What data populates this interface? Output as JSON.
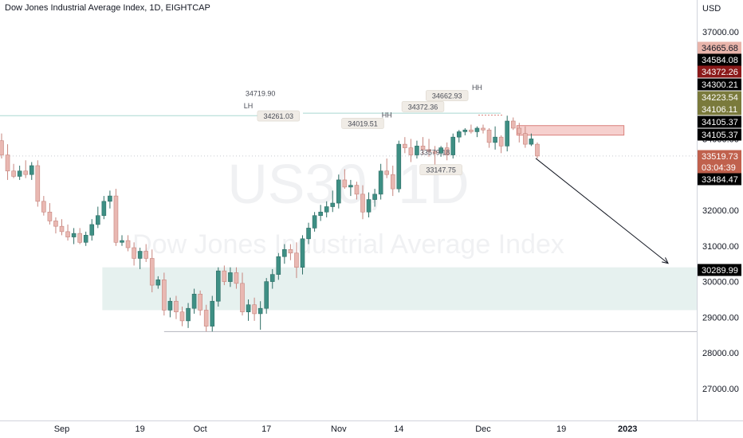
{
  "header": {
    "title": "Dow Jones Industrial Average Index, 1D, EIGHTCAP",
    "currency": "USD"
  },
  "watermark": {
    "symbol": "US30, 1D",
    "name": "Dow Jones Industrial Average Index"
  },
  "colors": {
    "up": "#26a69a",
    "up_body": "#3e8f84",
    "down": "#e4a9a4",
    "down_body": "#e9b8b2",
    "text": "#131722",
    "axis_text": "#787b86",
    "label_bg": "#000000"
  },
  "chart_data": {
    "type": "candlestick",
    "title": "Dow Jones Industrial Average Index, 1D, EIGHTCAP",
    "ylabel": "USD",
    "ylim": [
      26100,
      37900
    ],
    "y_ticks": [
      27000,
      28000,
      29000,
      30000,
      31000,
      32000,
      33000,
      34000,
      35000,
      36000,
      37000
    ],
    "y_tick_labels": [
      "27000.00",
      "28000.00",
      "29000.00",
      "30000.00",
      "31000.00",
      "32000.00",
      "33000.00",
      "34000.00",
      "35000.00",
      "36000.00",
      "37000.00"
    ],
    "x_ticks": [
      {
        "label": "Sep",
        "index": 10
      },
      {
        "label": "19",
        "index": 23
      },
      {
        "label": "Oct",
        "index": 33
      },
      {
        "label": "17",
        "index": 44
      },
      {
        "label": "Nov",
        "index": 56
      },
      {
        "label": "14",
        "index": 66
      },
      {
        "label": "Dec",
        "index": 80
      },
      {
        "label": "19",
        "index": 93
      },
      {
        "label": "2023",
        "index": 104
      }
    ],
    "candles": [
      {
        "o": 33950,
        "h": 34150,
        "l": 33450,
        "c": 33550
      },
      {
        "o": 33550,
        "h": 33850,
        "l": 32850,
        "c": 33100
      },
      {
        "o": 33100,
        "h": 33300,
        "l": 32900,
        "c": 32950
      },
      {
        "o": 32950,
        "h": 33250,
        "l": 32850,
        "c": 33100
      },
      {
        "o": 33100,
        "h": 33400,
        "l": 32900,
        "c": 33000
      },
      {
        "o": 33000,
        "h": 33350,
        "l": 32850,
        "c": 33250
      },
      {
        "o": 33250,
        "h": 33400,
        "l": 32100,
        "c": 32250
      },
      {
        "o": 32250,
        "h": 32400,
        "l": 31850,
        "c": 31950
      },
      {
        "o": 31950,
        "h": 32200,
        "l": 31600,
        "c": 31700
      },
      {
        "o": 31700,
        "h": 31800,
        "l": 31350,
        "c": 31550
      },
      {
        "o": 31550,
        "h": 31750,
        "l": 31300,
        "c": 31400
      },
      {
        "o": 31400,
        "h": 31600,
        "l": 31150,
        "c": 31250
      },
      {
        "o": 31250,
        "h": 31500,
        "l": 31050,
        "c": 31350
      },
      {
        "o": 31350,
        "h": 31500,
        "l": 31050,
        "c": 31100
      },
      {
        "o": 31100,
        "h": 31400,
        "l": 31000,
        "c": 31300
      },
      {
        "o": 31300,
        "h": 31750,
        "l": 31150,
        "c": 31600
      },
      {
        "o": 31600,
        "h": 32100,
        "l": 31500,
        "c": 31850
      },
      {
        "o": 31850,
        "h": 32400,
        "l": 31750,
        "c": 32250
      },
      {
        "o": 32250,
        "h": 32550,
        "l": 32050,
        "c": 32400
      },
      {
        "o": 32400,
        "h": 32600,
        "l": 31000,
        "c": 31100
      },
      {
        "o": 31100,
        "h": 31300,
        "l": 31000,
        "c": 31150
      },
      {
        "o": 31150,
        "h": 31300,
        "l": 30850,
        "c": 30950
      },
      {
        "o": 30950,
        "h": 31100,
        "l": 30450,
        "c": 30650
      },
      {
        "o": 30650,
        "h": 30950,
        "l": 30350,
        "c": 30850
      },
      {
        "o": 30850,
        "h": 31050,
        "l": 30550,
        "c": 30650
      },
      {
        "o": 30650,
        "h": 30900,
        "l": 29700,
        "c": 29900
      },
      {
        "o": 29900,
        "h": 30150,
        "l": 29800,
        "c": 30050
      },
      {
        "o": 30050,
        "h": 30250,
        "l": 29050,
        "c": 29200
      },
      {
        "o": 29200,
        "h": 29550,
        "l": 29000,
        "c": 29450
      },
      {
        "o": 29450,
        "h": 29600,
        "l": 28950,
        "c": 29150
      },
      {
        "o": 29150,
        "h": 29300,
        "l": 28750,
        "c": 28900
      },
      {
        "o": 28900,
        "h": 29400,
        "l": 28700,
        "c": 29250
      },
      {
        "o": 29250,
        "h": 29800,
        "l": 29100,
        "c": 29650
      },
      {
        "o": 29650,
        "h": 29750,
        "l": 29050,
        "c": 29200
      },
      {
        "o": 29200,
        "h": 29350,
        "l": 28600,
        "c": 28750
      },
      {
        "o": 28750,
        "h": 29600,
        "l": 28600,
        "c": 29450
      },
      {
        "o": 29450,
        "h": 30400,
        "l": 29300,
        "c": 30300
      },
      {
        "o": 30300,
        "h": 30450,
        "l": 29900,
        "c": 30000
      },
      {
        "o": 30000,
        "h": 30400,
        "l": 29850,
        "c": 30250
      },
      {
        "o": 30250,
        "h": 30400,
        "l": 29800,
        "c": 29950
      },
      {
        "o": 29950,
        "h": 30250,
        "l": 29050,
        "c": 29150
      },
      {
        "o": 29150,
        "h": 29500,
        "l": 28900,
        "c": 29350
      },
      {
        "o": 29350,
        "h": 29550,
        "l": 28900,
        "c": 29100
      },
      {
        "o": 29100,
        "h": 29450,
        "l": 28650,
        "c": 29250
      },
      {
        "o": 29250,
        "h": 30100,
        "l": 29100,
        "c": 30000
      },
      {
        "o": 30000,
        "h": 30350,
        "l": 29800,
        "c": 30200
      },
      {
        "o": 30200,
        "h": 30800,
        "l": 30050,
        "c": 30700
      },
      {
        "o": 30700,
        "h": 31050,
        "l": 30500,
        "c": 30900
      },
      {
        "o": 30900,
        "h": 31050,
        "l": 30600,
        "c": 30800
      },
      {
        "o": 30800,
        "h": 31100,
        "l": 30100,
        "c": 30400
      },
      {
        "o": 30400,
        "h": 31300,
        "l": 30200,
        "c": 31200
      },
      {
        "o": 31200,
        "h": 31650,
        "l": 31050,
        "c": 31500
      },
      {
        "o": 31500,
        "h": 31950,
        "l": 31400,
        "c": 31850
      },
      {
        "o": 31850,
        "h": 32150,
        "l": 31700,
        "c": 31950
      },
      {
        "o": 31950,
        "h": 32250,
        "l": 31800,
        "c": 32100
      },
      {
        "o": 32100,
        "h": 32550,
        "l": 31950,
        "c": 32200
      },
      {
        "o": 32200,
        "h": 33000,
        "l": 32050,
        "c": 32850
      },
      {
        "o": 32850,
        "h": 33150,
        "l": 32600,
        "c": 32650
      },
      {
        "o": 32650,
        "h": 32850,
        "l": 32400,
        "c": 32700
      },
      {
        "o": 32700,
        "h": 32800,
        "l": 32300,
        "c": 32450
      },
      {
        "o": 32450,
        "h": 32700,
        "l": 31750,
        "c": 31950
      },
      {
        "o": 31950,
        "h": 32500,
        "l": 31800,
        "c": 32300
      },
      {
        "o": 32300,
        "h": 32600,
        "l": 32100,
        "c": 32450
      },
      {
        "o": 32450,
        "h": 33300,
        "l": 32300,
        "c": 33100
      },
      {
        "o": 33100,
        "h": 33450,
        "l": 32900,
        "c": 33000
      },
      {
        "o": 33000,
        "h": 33250,
        "l": 32400,
        "c": 32600
      },
      {
        "o": 32600,
        "h": 33950,
        "l": 32500,
        "c": 33850
      },
      {
        "o": 33850,
        "h": 34050,
        "l": 33600,
        "c": 33750
      },
      {
        "o": 33750,
        "h": 34000,
        "l": 33350,
        "c": 33550
      },
      {
        "o": 33550,
        "h": 33950,
        "l": 33450,
        "c": 33800
      },
      {
        "o": 33800,
        "h": 34050,
        "l": 33550,
        "c": 33700
      },
      {
        "o": 33700,
        "h": 34000,
        "l": 33500,
        "c": 33650
      },
      {
        "o": 33650,
        "h": 33800,
        "l": 33150,
        "c": 33600
      },
      {
        "o": 33600,
        "h": 33800,
        "l": 33500,
        "c": 33750
      },
      {
        "o": 33750,
        "h": 33900,
        "l": 33400,
        "c": 33550
      },
      {
        "o": 33550,
        "h": 34150,
        "l": 33450,
        "c": 34050
      },
      {
        "o": 34050,
        "h": 34250,
        "l": 33900,
        "c": 34200
      },
      {
        "o": 34200,
        "h": 34300,
        "l": 34100,
        "c": 34250
      },
      {
        "o": 34250,
        "h": 34400,
        "l": 34150,
        "c": 34200
      },
      {
        "o": 34200,
        "h": 34350,
        "l": 34050,
        "c": 34300
      },
      {
        "o": 34300,
        "h": 34400,
        "l": 34150,
        "c": 34250
      },
      {
        "o": 34250,
        "h": 34300,
        "l": 33750,
        "c": 33900
      },
      {
        "o": 33900,
        "h": 34350,
        "l": 33700,
        "c": 34050
      },
      {
        "o": 34050,
        "h": 34100,
        "l": 33600,
        "c": 33800
      },
      {
        "o": 33800,
        "h": 34650,
        "l": 33650,
        "c": 34500
      },
      {
        "o": 34500,
        "h": 34600,
        "l": 34250,
        "c": 34300
      },
      {
        "o": 34300,
        "h": 34450,
        "l": 33900,
        "c": 34150
      },
      {
        "o": 34150,
        "h": 34350,
        "l": 33750,
        "c": 33850
      },
      {
        "o": 33850,
        "h": 34150,
        "l": 33800,
        "c": 34000
      },
      {
        "o": 33850,
        "h": 33900,
        "l": 33450,
        "c": 33520
      }
    ],
    "supply_zone": {
      "x_start_index": 86,
      "x_end_index": 103,
      "y_low": 34105.37,
      "y_high": 34372.26
    },
    "demand_zone": {
      "x_start_index": 17,
      "x_end_index": 119,
      "y_low": 29200,
      "y_high": 30400
    },
    "support_line": {
      "y": 28600,
      "x_start_index": 27
    },
    "lh_line": {
      "y": 34650,
      "x_start_index": 0
    },
    "hh_line": {
      "y": 34720,
      "x_start_index": 43,
      "x_end_index": 85
    },
    "current_price_line": {
      "y": 33519.73
    },
    "projection_arrow": {
      "from": {
        "index": 92,
        "y": 33500
      },
      "to": {
        "index": 122,
        "y": 30289.99
      }
    },
    "annotations": [
      {
        "text": "LH",
        "index": 41,
        "y": 34900,
        "kind": "plain"
      },
      {
        "text": "34261.03",
        "index": 46,
        "y": 34610,
        "kind": "box"
      },
      {
        "text": "34719.90",
        "index": 43,
        "y": 35250,
        "kind": "plain"
      },
      {
        "text": "34019.51",
        "index": 60,
        "y": 34400,
        "kind": "box"
      },
      {
        "text": "HH",
        "index": 64,
        "y": 34650,
        "kind": "plain"
      },
      {
        "text": "34372.36",
        "index": 70,
        "y": 34870,
        "kind": "box"
      },
      {
        "text": "34662.93",
        "index": 74,
        "y": 35180,
        "kind": "box"
      },
      {
        "text": "HH",
        "index": 79,
        "y": 35410,
        "kind": "plain"
      },
      {
        "text": "33579.18",
        "index": 72,
        "y": 33600,
        "kind": "plain"
      },
      {
        "text": "33147.75",
        "index": 73,
        "y": 33100,
        "kind": "box"
      }
    ],
    "price_labels": [
      {
        "text": "34665.68",
        "y": 34665.68,
        "bg": "#e8b4aa",
        "fg": "#131722"
      },
      {
        "text": "34584.08",
        "y": 34584.08,
        "bg": "#000000",
        "fg": "#ffffff"
      },
      {
        "text": "34372.26",
        "y": 34372.26,
        "bg": "#8b1a1a",
        "fg": "#ffffff"
      },
      {
        "text": "34300.21",
        "y": 34300.21,
        "bg": "#000000",
        "fg": "#ffffff"
      },
      {
        "text": "34223.54",
        "y": 34223.54,
        "bg": "#7a7a3c",
        "fg": "#ffffff"
      },
      {
        "text": "34106.11",
        "y": 34106.11,
        "bg": "#7a7a3c",
        "fg": "#ffffff"
      },
      {
        "text": "34105.37",
        "y": 34105.37,
        "bg": "#000000",
        "fg": "#ffffff"
      },
      {
        "text": "34105.37",
        "y": 34105.37,
        "bg": "#000000",
        "fg": "#ffffff"
      },
      {
        "text": "33519.73",
        "y": 33519.73,
        "bg": "#c0614d",
        "fg": "#ffffff"
      },
      {
        "text": "03:04:39",
        "y": 33519.73,
        "bg": "#c0614d",
        "fg": "#ffffff"
      },
      {
        "text": "33484.47",
        "y": 33484.47,
        "bg": "#000000",
        "fg": "#ffffff"
      },
      {
        "text": "30289.99",
        "y": 30289.99,
        "bg": "#000000",
        "fg": "#ffffff"
      }
    ]
  }
}
